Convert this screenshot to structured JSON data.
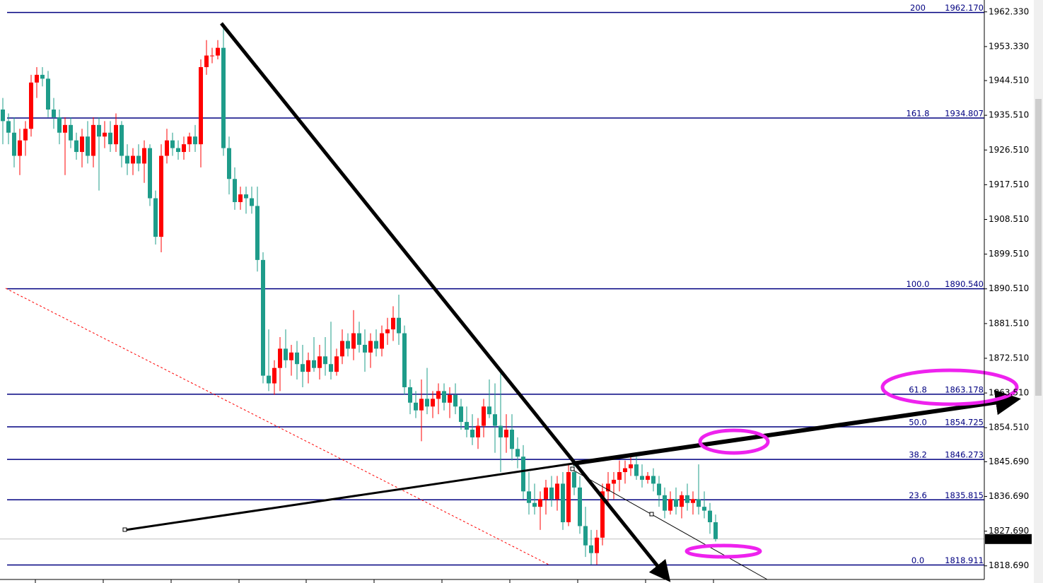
{
  "chart_data": {
    "type": "candlestick",
    "ylim": [
      1815.16,
      1965.4
    ],
    "yticks": [
      {
        "value": 1962.33,
        "label": "1962.330"
      },
      {
        "value": 1953.33,
        "label": "1953.330"
      },
      {
        "value": 1944.51,
        "label": "1944.510"
      },
      {
        "value": 1935.51,
        "label": "1935.510"
      },
      {
        "value": 1926.51,
        "label": "1926.510"
      },
      {
        "value": 1917.51,
        "label": "1917.510"
      },
      {
        "value": 1908.51,
        "label": "1908.510"
      },
      {
        "value": 1899.51,
        "label": "1899.510"
      },
      {
        "value": 1890.51,
        "label": "1890.510"
      },
      {
        "value": 1881.51,
        "label": "1881.510"
      },
      {
        "value": 1872.51,
        "label": "1872.510"
      },
      {
        "value": 1863.51,
        "label": "1863.510"
      },
      {
        "value": 1854.51,
        "label": "1854.510"
      },
      {
        "value": 1845.69,
        "label": "1845.690"
      },
      {
        "value": 1836.69,
        "label": "1836.690"
      },
      {
        "value": 1827.69,
        "label": "1827.690"
      },
      {
        "value": 1818.69,
        "label": "1818.690"
      }
    ],
    "up_color": "#ff0000",
    "down_color": "#1e9c8a",
    "fib_color": "#000080",
    "fib_levels": [
      {
        "ratio": "200",
        "price": {
          "value": 1962.17,
          "label": "1962.170"
        }
      },
      {
        "ratio": "161.8",
        "price": {
          "value": 1934.807,
          "label": "1934.807"
        }
      },
      {
        "ratio": "100.0",
        "price": {
          "value": 1890.54,
          "label": "1890.540"
        }
      },
      {
        "ratio": "61.8",
        "price": {
          "value": 1863.178,
          "label": "1863.178"
        }
      },
      {
        "ratio": "50.0",
        "price": {
          "value": 1854.725,
          "label": "1854.725"
        }
      },
      {
        "ratio": "38.2",
        "price": {
          "value": 1846.273,
          "label": "1846.273"
        }
      },
      {
        "ratio": "23.6",
        "price": {
          "value": 1835.815,
          "label": "1835.815"
        }
      },
      {
        "ratio": "0.0",
        "price": {
          "value": 1818.911,
          "label": "1818.911"
        }
      }
    ],
    "last_price": {
      "value": 1825.64,
      "label": "1825.640"
    },
    "candles": [
      [
        1937,
        1940,
        1928,
        1934
      ],
      [
        1934,
        1936,
        1928,
        1931
      ],
      [
        1931,
        1935,
        1922,
        1925
      ],
      [
        1925,
        1932,
        1920,
        1929
      ],
      [
        1929,
        1934,
        1925,
        1932
      ],
      [
        1932,
        1946,
        1930,
        1944
      ],
      [
        1944,
        1948,
        1940,
        1946
      ],
      [
        1946,
        1948,
        1943,
        1945
      ],
      [
        1945,
        1947,
        1935,
        1937
      ],
      [
        1937,
        1940,
        1932,
        1935
      ],
      [
        1935,
        1937,
        1928,
        1931
      ],
      [
        1931,
        1935,
        1920,
        1933
      ],
      [
        1933,
        1935,
        1927,
        1929
      ],
      [
        1929,
        1931,
        1924,
        1926
      ],
      [
        1926,
        1932,
        1922,
        1930
      ],
      [
        1930,
        1934,
        1923,
        1925
      ],
      [
        1925,
        1935,
        1922,
        1933
      ],
      [
        1933,
        1935,
        1916,
        1930
      ],
      [
        1930,
        1934,
        1927,
        1931
      ],
      [
        1931,
        1934,
        1926,
        1928
      ],
      [
        1928,
        1936,
        1926,
        1933
      ],
      [
        1933,
        1934,
        1922,
        1925
      ],
      [
        1925,
        1928,
        1920,
        1923
      ],
      [
        1923,
        1927,
        1920,
        1925
      ],
      [
        1925,
        1928,
        1921,
        1923
      ],
      [
        1923,
        1929,
        1918,
        1927
      ],
      [
        1927,
        1928,
        1912,
        1914
      ],
      [
        1914,
        1916,
        1902,
        1904
      ],
      [
        1904,
        1928,
        1900,
        1925
      ],
      [
        1925,
        1932,
        1923,
        1929
      ],
      [
        1929,
        1931,
        1925,
        1927
      ],
      [
        1927,
        1929,
        1924,
        1926
      ],
      [
        1926,
        1930,
        1924,
        1928
      ],
      [
        1928,
        1931,
        1926,
        1930
      ],
      [
        1930,
        1933,
        1926,
        1928
      ],
      [
        1928,
        1950,
        1922,
        1948
      ],
      [
        1948,
        1955,
        1946,
        1951
      ],
      [
        1951,
        1953,
        1949,
        1951
      ],
      [
        1951,
        1955,
        1950,
        1953
      ],
      [
        1953,
        1959,
        1925,
        1927
      ],
      [
        1927,
        1930,
        1915,
        1919
      ],
      [
        1919,
        1922,
        1911,
        1913
      ],
      [
        1913,
        1917,
        1911,
        1915
      ],
      [
        1915,
        1917,
        1910,
        1914
      ],
      [
        1914,
        1917,
        1910,
        1912
      ],
      [
        1912,
        1917,
        1895,
        1898
      ],
      [
        1898,
        1900,
        1866,
        1868
      ],
      [
        1868,
        1880,
        1864,
        1866
      ],
      [
        1866,
        1872,
        1863,
        1870
      ],
      [
        1870,
        1878,
        1864,
        1875
      ],
      [
        1875,
        1880,
        1870,
        1872
      ],
      [
        1872,
        1876,
        1868,
        1874
      ],
      [
        1874,
        1877,
        1867,
        1871
      ],
      [
        1871,
        1876,
        1865,
        1869
      ],
      [
        1869,
        1874,
        1866,
        1872
      ],
      [
        1872,
        1878,
        1869,
        1870
      ],
      [
        1870,
        1876,
        1867,
        1873
      ],
      [
        1873,
        1878,
        1868,
        1871
      ],
      [
        1871,
        1882,
        1867,
        1869
      ],
      [
        1869,
        1875,
        1868,
        1873
      ],
      [
        1873,
        1880,
        1871,
        1877
      ],
      [
        1877,
        1879,
        1873,
        1875
      ],
      [
        1875,
        1885,
        1872,
        1879
      ],
      [
        1879,
        1882,
        1874,
        1876
      ],
      [
        1876,
        1880,
        1869,
        1874
      ],
      [
        1874,
        1879,
        1870,
        1877
      ],
      [
        1877,
        1880,
        1873,
        1875
      ],
      [
        1875,
        1881,
        1873,
        1879
      ],
      [
        1879,
        1883,
        1876,
        1880
      ],
      [
        1880,
        1886,
        1877,
        1883
      ],
      [
        1883,
        1889,
        1876,
        1879
      ],
      [
        1879,
        1881,
        1863,
        1865
      ],
      [
        1865,
        1867,
        1858,
        1861
      ],
      [
        1861,
        1864,
        1857,
        1859
      ],
      [
        1859,
        1867,
        1851,
        1862
      ],
      [
        1862,
        1870,
        1858,
        1860
      ],
      [
        1860,
        1864,
        1857,
        1862
      ],
      [
        1862,
        1866,
        1858,
        1864
      ],
      [
        1864,
        1866,
        1859,
        1861
      ],
      [
        1861,
        1865,
        1857,
        1863
      ],
      [
        1863,
        1866,
        1858,
        1860
      ],
      [
        1860,
        1862,
        1854,
        1856
      ],
      [
        1856,
        1860,
        1852,
        1854
      ],
      [
        1854,
        1858,
        1850,
        1852
      ],
      [
        1852,
        1857,
        1849,
        1855
      ],
      [
        1855,
        1862,
        1852,
        1860
      ],
      [
        1860,
        1867,
        1857,
        1858
      ],
      [
        1858,
        1866,
        1848,
        1855
      ],
      [
        1855,
        1869,
        1843,
        1852
      ],
      [
        1852,
        1858,
        1848,
        1854
      ],
      [
        1854,
        1858,
        1846,
        1849
      ],
      [
        1849,
        1852,
        1844,
        1847
      ],
      [
        1847,
        1850,
        1836,
        1838
      ],
      [
        1838,
        1843,
        1832,
        1835
      ],
      [
        1835,
        1840,
        1832,
        1834
      ],
      [
        1834,
        1838,
        1828,
        1836
      ],
      [
        1836,
        1841,
        1832,
        1839
      ],
      [
        1839,
        1842,
        1834,
        1836
      ],
      [
        1836,
        1842,
        1833,
        1840
      ],
      [
        1840,
        1843,
        1828,
        1830
      ],
      [
        1830,
        1845,
        1829,
        1843
      ],
      [
        1843,
        1845,
        1837,
        1839
      ],
      [
        1839,
        1842,
        1827,
        1829
      ],
      [
        1829,
        1834,
        1821,
        1824
      ],
      [
        1824,
        1828,
        1819,
        1822
      ],
      [
        1822,
        1828,
        1819,
        1826
      ],
      [
        1826,
        1840,
        1824,
        1838
      ],
      [
        1838,
        1843,
        1834,
        1840
      ],
      [
        1840,
        1843,
        1836,
        1841
      ],
      [
        1841,
        1846,
        1838,
        1843
      ],
      [
        1843,
        1846,
        1840,
        1844
      ],
      [
        1844,
        1847,
        1842,
        1845
      ],
      [
        1845,
        1847,
        1841,
        1842
      ],
      [
        1842,
        1845,
        1839,
        1841
      ],
      [
        1841,
        1843,
        1840,
        1842
      ],
      [
        1842,
        1844,
        1838,
        1840
      ],
      [
        1840,
        1842,
        1834,
        1837
      ],
      [
        1837,
        1839,
        1831,
        1833
      ],
      [
        1833,
        1838,
        1832,
        1836
      ],
      [
        1836,
        1839,
        1832,
        1834
      ],
      [
        1834,
        1838,
        1831,
        1837
      ],
      [
        1837,
        1840,
        1833,
        1835
      ],
      [
        1835,
        1838,
        1832,
        1836
      ],
      [
        1836,
        1845,
        1832,
        1834
      ],
      [
        1834,
        1838,
        1831,
        1833
      ],
      [
        1833,
        1835,
        1827,
        1830
      ],
      [
        1830,
        1832,
        1825,
        1825.64
      ]
    ]
  }
}
